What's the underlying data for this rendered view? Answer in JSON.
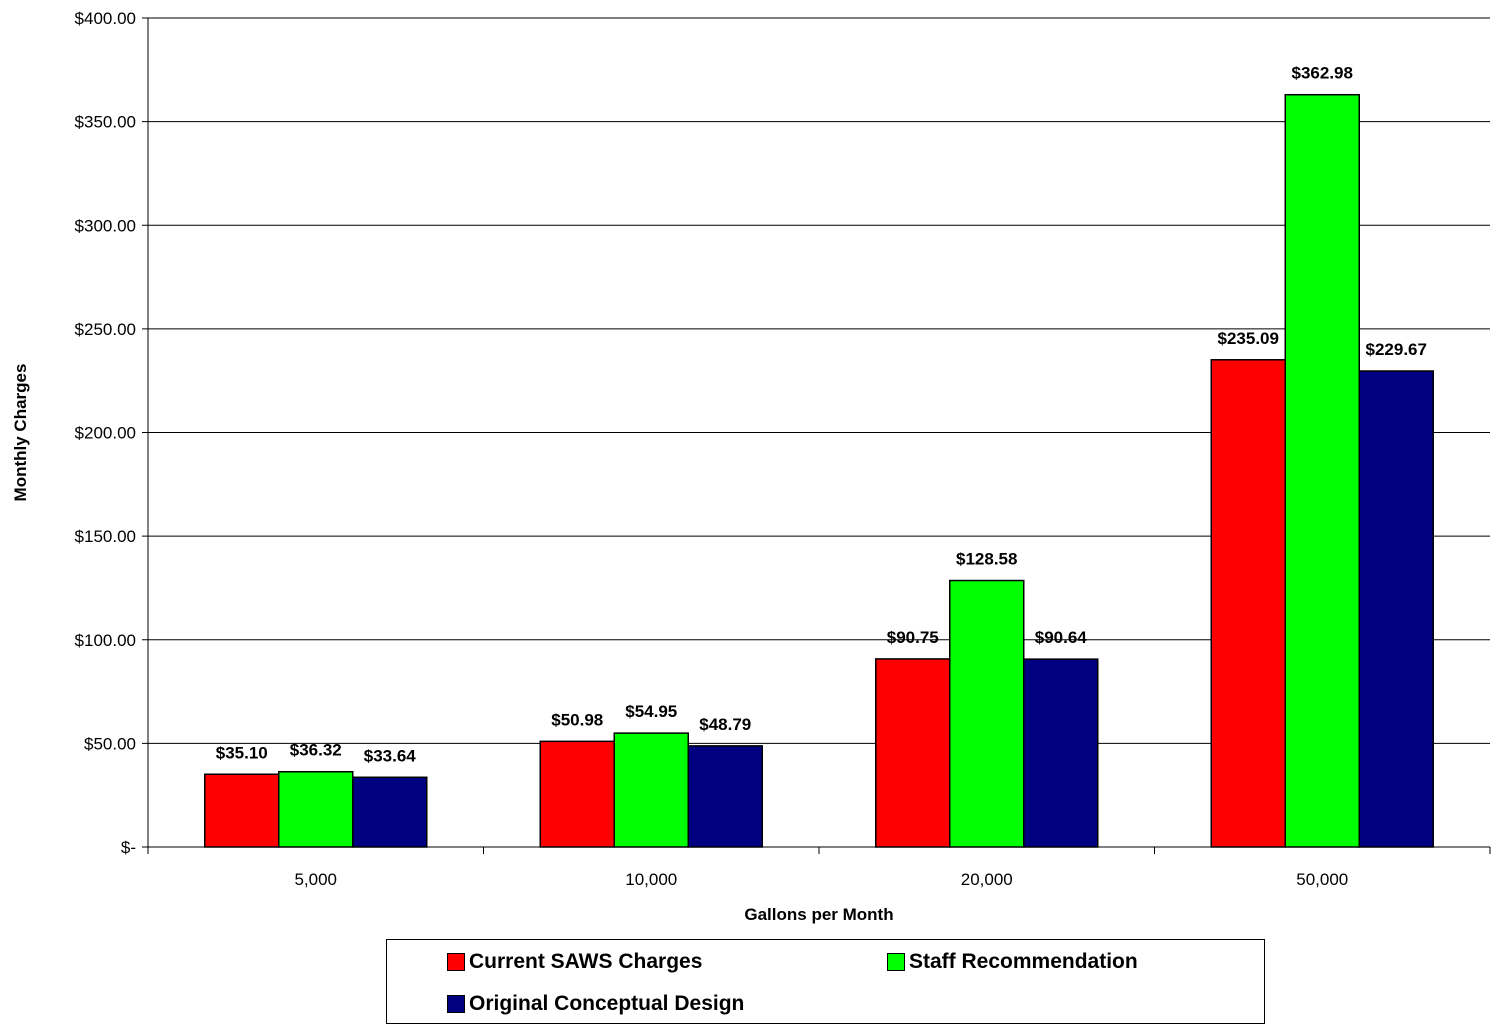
{
  "chart_data": {
    "type": "bar",
    "categories": [
      "5,000",
      "10,000",
      "20,000",
      "50,000"
    ],
    "series": [
      {
        "name": "Current SAWS Charges",
        "color": "#ff0000",
        "values": [
          35.1,
          50.98,
          90.75,
          235.09
        ],
        "labels": [
          "$35.10",
          "$50.98",
          "$90.75",
          "$235.09"
        ]
      },
      {
        "name": "Staff Recommendation",
        "color": "#00ff00",
        "values": [
          36.32,
          54.95,
          128.58,
          362.98
        ],
        "labels": [
          "$36.32",
          "$54.95",
          "$128.58",
          "$362.98"
        ]
      },
      {
        "name": "Original Conceptual Design",
        "color": "#000080",
        "values": [
          33.64,
          48.79,
          90.64,
          229.67
        ],
        "labels": [
          "$33.64",
          "$48.79",
          "$90.64",
          "$229.67"
        ]
      }
    ],
    "xlabel": "Gallons per Month",
    "ylabel": "Monthly Charges",
    "ylim": [
      0,
      400
    ],
    "yticks": [
      0,
      50,
      100,
      150,
      200,
      250,
      300,
      350,
      400
    ],
    "ytick_labels": [
      "$-",
      "$50.00",
      "$100.00",
      "$150.00",
      "$200.00",
      "$250.00",
      "$300.00",
      "$350.00",
      "$400.00"
    ],
    "grid": true,
    "legend_position": "bottom"
  },
  "legend": {
    "items": [
      {
        "label": "Current SAWS Charges",
        "color": "#ff0000"
      },
      {
        "label": "Staff Recommendation",
        "color": "#00ff00"
      },
      {
        "label": "Original Conceptual Design",
        "color": "#000080"
      }
    ]
  }
}
